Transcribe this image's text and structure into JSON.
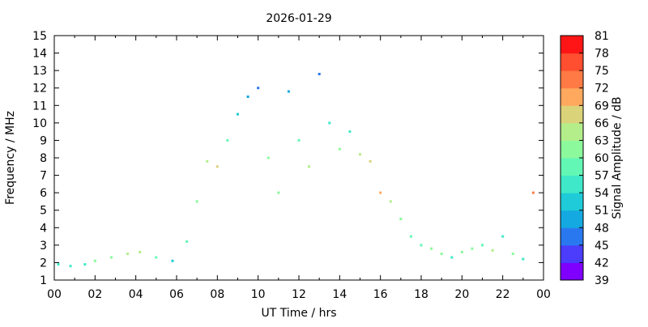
{
  "chart_data": {
    "type": "heatmap",
    "title": "2026-01-29",
    "xlabel": "UT Time / hrs",
    "ylabel": "Frequency / MHz",
    "xlim": [
      0,
      24
    ],
    "ylim": [
      1,
      15
    ],
    "x_ticks": [
      "00",
      "02",
      "04",
      "06",
      "08",
      "10",
      "12",
      "14",
      "16",
      "18",
      "20",
      "22",
      "00"
    ],
    "y_ticks": [
      "1",
      "2",
      "3",
      "4",
      "5",
      "6",
      "7",
      "8",
      "9",
      "10",
      "11",
      "12",
      "13",
      "14",
      "15"
    ],
    "grid": false,
    "colorbar": {
      "label": "Signal Amplitude / dB",
      "min": 39,
      "max": 81,
      "ticks": [
        "39",
        "42",
        "45",
        "48",
        "51",
        "54",
        "57",
        "60",
        "63",
        "66",
        "69",
        "72",
        "75",
        "78",
        "81"
      ],
      "colors": [
        "#7f00ff",
        "#4b3dfb",
        "#2a78f0",
        "#14a9e0",
        "#1fcbd8",
        "#3fe8c8",
        "#62f7b5",
        "#8cf99c",
        "#b3ee8a",
        "#dbd37a",
        "#ffa95e",
        "#ff7a44",
        "#ff4e30",
        "#ff1515"
      ]
    },
    "samples": [
      {
        "t": 0.2,
        "f": 1.9,
        "dB": 55
      },
      {
        "t": 0.8,
        "f": 1.8,
        "dB": 54
      },
      {
        "t": 1.5,
        "f": 1.9,
        "dB": 56
      },
      {
        "t": 2.0,
        "f": 2.1,
        "dB": 60
      },
      {
        "t": 2.8,
        "f": 2.3,
        "dB": 61
      },
      {
        "t": 3.6,
        "f": 2.5,
        "dB": 63
      },
      {
        "t": 4.2,
        "f": 2.6,
        "dB": 65
      },
      {
        "t": 5.0,
        "f": 2.3,
        "dB": 58
      },
      {
        "t": 5.8,
        "f": 2.1,
        "dB": 53
      },
      {
        "t": 6.5,
        "f": 3.2,
        "dB": 57
      },
      {
        "t": 7.0,
        "f": 5.5,
        "dB": 60
      },
      {
        "t": 7.5,
        "f": 7.8,
        "dB": 63
      },
      {
        "t": 8.0,
        "f": 7.5,
        "dB": 66
      },
      {
        "t": 8.5,
        "f": 9.0,
        "dB": 58
      },
      {
        "t": 9.0,
        "f": 10.5,
        "dB": 53
      },
      {
        "t": 9.5,
        "f": 11.5,
        "dB": 49
      },
      {
        "t": 10.0,
        "f": 12.0,
        "dB": 47
      },
      {
        "t": 10.5,
        "f": 8.0,
        "dB": 62
      },
      {
        "t": 11.0,
        "f": 6.0,
        "dB": 60
      },
      {
        "t": 11.5,
        "f": 11.8,
        "dB": 48
      },
      {
        "t": 12.0,
        "f": 9.0,
        "dB": 58
      },
      {
        "t": 12.5,
        "f": 7.5,
        "dB": 63
      },
      {
        "t": 13.0,
        "f": 12.8,
        "dB": 45
      },
      {
        "t": 13.5,
        "f": 10.0,
        "dB": 54
      },
      {
        "t": 14.0,
        "f": 8.5,
        "dB": 60
      },
      {
        "t": 14.5,
        "f": 9.5,
        "dB": 56
      },
      {
        "t": 15.0,
        "f": 8.2,
        "dB": 63
      },
      {
        "t": 15.5,
        "f": 7.8,
        "dB": 66
      },
      {
        "t": 16.0,
        "f": 6.0,
        "dB": 70
      },
      {
        "t": 16.5,
        "f": 5.5,
        "dB": 64
      },
      {
        "t": 17.0,
        "f": 4.5,
        "dB": 60
      },
      {
        "t": 17.5,
        "f": 3.5,
        "dB": 58
      },
      {
        "t": 18.0,
        "f": 3.0,
        "dB": 57
      },
      {
        "t": 18.5,
        "f": 2.8,
        "dB": 60
      },
      {
        "t": 19.0,
        "f": 2.5,
        "dB": 62
      },
      {
        "t": 19.5,
        "f": 2.3,
        "dB": 56
      },
      {
        "t": 20.0,
        "f": 2.6,
        "dB": 61
      },
      {
        "t": 20.5,
        "f": 2.8,
        "dB": 60
      },
      {
        "t": 21.0,
        "f": 3.0,
        "dB": 57
      },
      {
        "t": 21.5,
        "f": 2.7,
        "dB": 63
      },
      {
        "t": 22.0,
        "f": 3.5,
        "dB": 55
      },
      {
        "t": 22.5,
        "f": 2.5,
        "dB": 60
      },
      {
        "t": 23.0,
        "f": 2.2,
        "dB": 56
      },
      {
        "t": 23.5,
        "f": 6.0,
        "dB": 72
      }
    ]
  }
}
